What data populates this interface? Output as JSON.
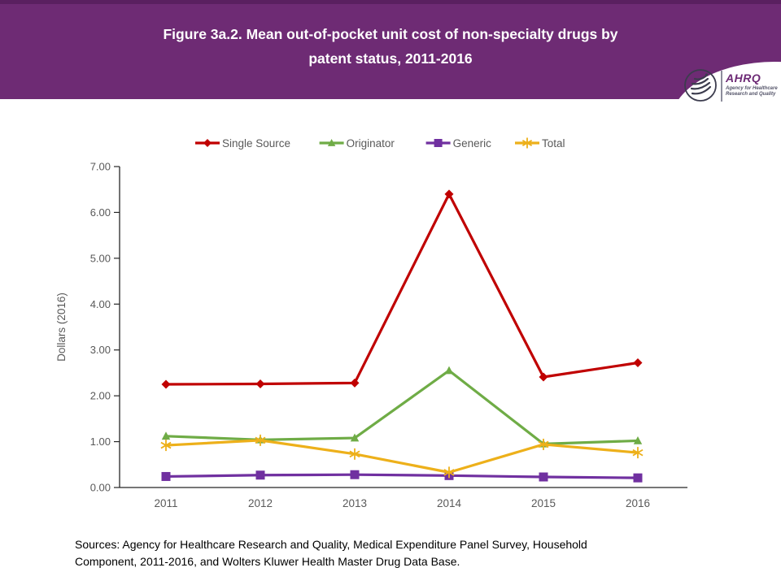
{
  "header": {
    "title_line1": "Figure 3a.2. Mean out-of-pocket unit cost of non-specialty drugs by",
    "title_line2": "patent status, 2011-2016",
    "background_color": "#6e2b74"
  },
  "logo": {
    "acronym": "AHRQ",
    "tagline_line1": "Agency for Healthcare",
    "tagline_line2": "Research and Quality",
    "accent_color": "#6d2a75"
  },
  "chart_data": {
    "type": "line",
    "title": "Mean out-of-pocket unit cost of non-specialty drugs by patent status, 2011-2016",
    "categories": [
      "2011",
      "2012",
      "2013",
      "2014",
      "2015",
      "2016"
    ],
    "series": [
      {
        "name": "Single Source",
        "color": "#C00000",
        "marker": "diamond",
        "values": [
          2.25,
          2.26,
          2.28,
          6.4,
          2.41,
          2.72
        ]
      },
      {
        "name": "Originator",
        "color": "#6FAC46",
        "marker": "triangle",
        "values": [
          1.12,
          1.04,
          1.08,
          2.55,
          0.95,
          1.02
        ]
      },
      {
        "name": "Generic",
        "color": "#7030A0",
        "marker": "square",
        "values": [
          0.24,
          0.27,
          0.28,
          0.26,
          0.23,
          0.21
        ]
      },
      {
        "name": "Total",
        "color": "#EDB01A",
        "marker": "asterisk",
        "values": [
          0.92,
          1.03,
          0.73,
          0.33,
          0.94,
          0.76
        ]
      }
    ],
    "xlabel": "",
    "ylabel": "Dollars (2016)",
    "ylim": [
      0,
      7
    ],
    "ytick_step": 1,
    "ytick_labels": [
      "0.00",
      "1.00",
      "2.00",
      "3.00",
      "4.00",
      "5.00",
      "6.00",
      "7.00"
    ],
    "legend_position": "top",
    "grid": false,
    "axis_color": "#262626",
    "tick_label_color": "#595959",
    "legend_text_color": "#595959"
  },
  "footer": {
    "sources_line1": "Sources: Agency for Healthcare Research and Quality, Medical Expenditure Panel Survey, Household",
    "sources_line2": "Component, 2011-2016, and Wolters Kluwer Health Master Drug Data Base."
  }
}
